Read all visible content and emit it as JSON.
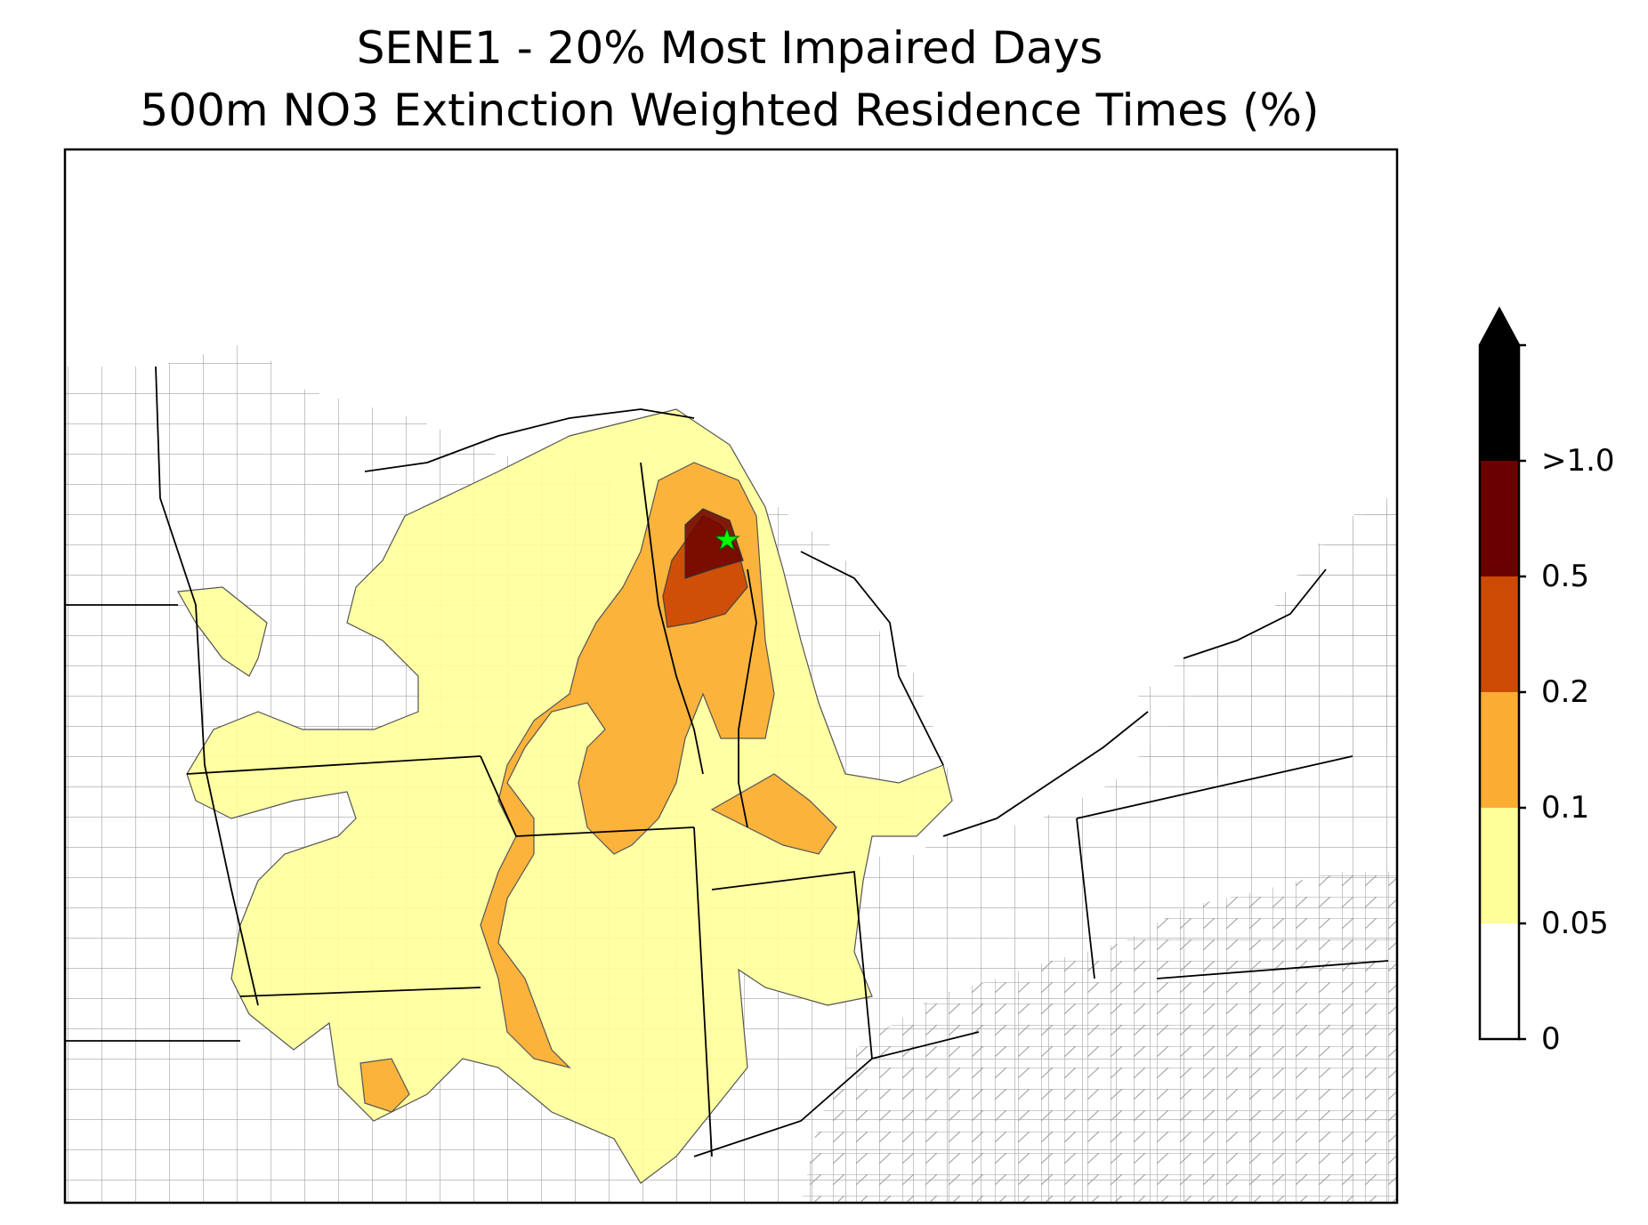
{
  "title": {
    "line1": "SENE1 - 20% Most Impaired Days",
    "line2": "500m NO3 Extinction Weighted Residence Times (%)"
  },
  "site_marker": {
    "name": "SENE1",
    "symbol": "star",
    "color": "#00ff00"
  },
  "colorbar": {
    "extend": "max",
    "bins": [
      {
        "from": "0",
        "to": "0.05",
        "color": "#ffffff"
      },
      {
        "from": "0.05",
        "to": "0.1",
        "color": "#ffff99"
      },
      {
        "from": "0.1",
        "to": "0.2",
        "color": "#fbac33"
      },
      {
        "from": "0.2",
        "to": "0.5",
        "color": "#cc4a03"
      },
      {
        "from": "0.5",
        "to": ">1.0",
        "color": "#6b0000"
      }
    ],
    "overflow_color": "#000000",
    "tick_labels": [
      "0",
      "0.05",
      "0.1",
      "0.2",
      "0.5",
      ">1.0"
    ]
  },
  "layers": {
    "state_boundary_color": "#000000",
    "county_boundary_color": "#a0a0a0"
  }
}
